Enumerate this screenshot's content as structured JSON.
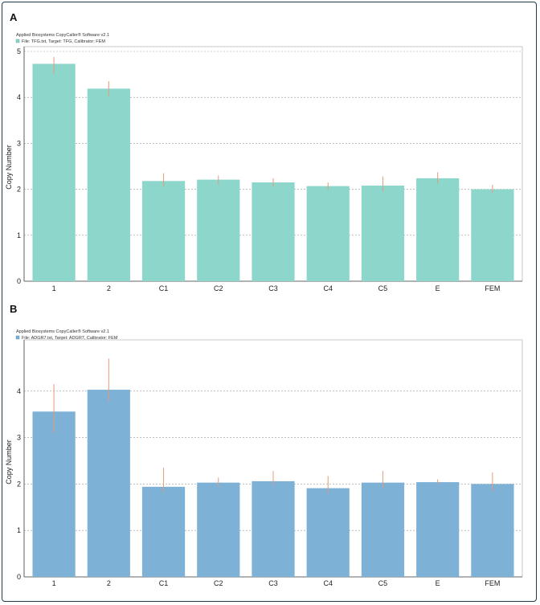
{
  "colors": {
    "panel_a_bar": "#8dd6cb",
    "panel_b_bar": "#7eb1d6",
    "error_bar": "#e39b7a"
  },
  "chart_data": [
    {
      "type": "bar",
      "panel_label": "A",
      "software_title": "Applied Biosystems CopyCaller® Software v2.1",
      "file_info": "File: TFG.txt, Target: TFG, Calibrator: FEM",
      "ylabel": "Copy Number",
      "xlabel": "",
      "ylim": [
        0,
        5
      ],
      "yticks": [
        0,
        1,
        2,
        3,
        4,
        5
      ],
      "grid": true,
      "categories": [
        "1",
        "2",
        "C1",
        "C2",
        "C3",
        "C4",
        "C5",
        "E",
        "FEM"
      ],
      "values": [
        4.73,
        4.19,
        2.18,
        2.21,
        2.15,
        2.07,
        2.08,
        2.24,
        2.0
      ],
      "error_low": [
        4.5,
        4.03,
        2.05,
        2.1,
        2.05,
        1.99,
        1.95,
        2.12,
        1.92
      ],
      "error_high": [
        4.88,
        4.35,
        2.35,
        2.3,
        2.24,
        2.15,
        2.28,
        2.37,
        2.1
      ]
    },
    {
      "type": "bar",
      "panel_label": "B",
      "software_title": "Applied Biosystems CopyCaller® Software v2.1",
      "file_info": "File: ADGR7.txt, Target: ADGR7, Calibrator: FEM",
      "ylabel": "Copy Number",
      "xlabel": "",
      "ylim": [
        0,
        5
      ],
      "yticks": [
        0,
        1,
        2,
        3,
        4
      ],
      "grid": true,
      "categories": [
        "1",
        "2",
        "C1",
        "C2",
        "C3",
        "C4",
        "C5",
        "E",
        "FEM"
      ],
      "values": [
        3.56,
        4.03,
        1.94,
        2.03,
        2.06,
        1.91,
        2.03,
        2.04,
        2.0
      ],
      "error_low": [
        3.1,
        3.78,
        1.82,
        1.95,
        1.98,
        1.8,
        1.92,
        2.0,
        1.85
      ],
      "error_high": [
        4.15,
        4.7,
        2.35,
        2.14,
        2.28,
        2.17,
        2.28,
        2.1,
        2.25
      ]
    }
  ]
}
